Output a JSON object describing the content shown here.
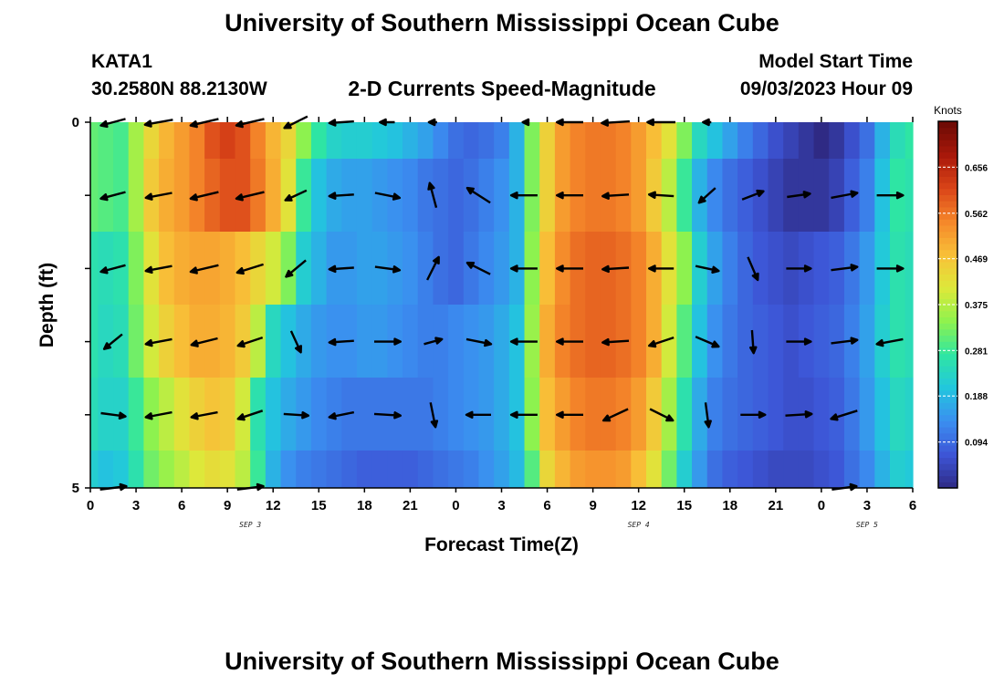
{
  "header": {
    "title": "University of Southern Mississippi Ocean Cube",
    "station": "KATA1",
    "coords": "30.2580N  88.2130W",
    "chart_name": "2-D Currents Speed-Magnitude",
    "model_label": "Model Start Time",
    "model_time": "09/03/2023 Hour 09"
  },
  "footer": {
    "title": "University of Southern Mississippi Ocean Cube"
  },
  "colors": {
    "colormap": [
      "#2f2a84",
      "#3d55d6",
      "#3b8ef0",
      "#22c6de",
      "#2fe6a2",
      "#8ef24e",
      "#dde93a",
      "#f8c038",
      "#f5872a",
      "#da4418",
      "#a8180a",
      "#6a0a05"
    ]
  },
  "chart_data": {
    "type": "heatmap",
    "xlabel": "Forecast Time(Z)",
    "ylabel": "Depth (ft)",
    "x_tick_labels": [
      "0",
      "3",
      "6",
      "9",
      "12",
      "15",
      "18",
      "21",
      "0",
      "3",
      "6",
      "9",
      "12",
      "15",
      "18",
      "21",
      "0",
      "3",
      "6"
    ],
    "y_tick_labels": [
      "0",
      "5"
    ],
    "y_range": [
      0,
      5
    ],
    "date_labels": [
      {
        "text": "SEP 3",
        "hour": 10.5
      },
      {
        "text": "SEP 4",
        "hour": 36
      },
      {
        "text": "SEP 5",
        "hour": 51
      }
    ],
    "hours": [
      0,
      1,
      2,
      3,
      4,
      5,
      6,
      7,
      8,
      9,
      10,
      11,
      12,
      13,
      14,
      15,
      16,
      17,
      18,
      19,
      20,
      21,
      22,
      23,
      24,
      25,
      26,
      27,
      28,
      29,
      30,
      31,
      32,
      33,
      34,
      35,
      36,
      37,
      38,
      39,
      40,
      41,
      42,
      43,
      44,
      45,
      46,
      47,
      48,
      49,
      50,
      51,
      52,
      53,
      54
    ],
    "depth_bands": [
      "0-0.5",
      "0.5-1.5",
      "1.5-2.5",
      "2.5-3.5",
      "3.5-4.5",
      "4.5-5"
    ],
    "speed_rows": [
      [
        0.31,
        0.3,
        0.29,
        0.36,
        0.44,
        0.49,
        0.52,
        0.55,
        0.6,
        0.62,
        0.6,
        0.55,
        0.49,
        0.44,
        0.34,
        0.27,
        0.23,
        0.22,
        0.22,
        0.21,
        0.2,
        0.18,
        0.16,
        0.13,
        0.1,
        0.09,
        0.1,
        0.12,
        0.18,
        0.33,
        0.45,
        0.52,
        0.55,
        0.56,
        0.56,
        0.55,
        0.52,
        0.48,
        0.42,
        0.33,
        0.24,
        0.2,
        0.16,
        0.12,
        0.09,
        0.06,
        0.04,
        0.02,
        0.0,
        0.02,
        0.06,
        0.1,
        0.18,
        0.25,
        0.27
      ],
      [
        0.31,
        0.3,
        0.29,
        0.36,
        0.46,
        0.5,
        0.52,
        0.55,
        0.58,
        0.6,
        0.6,
        0.56,
        0.5,
        0.42,
        0.28,
        0.2,
        0.17,
        0.16,
        0.16,
        0.15,
        0.14,
        0.13,
        0.11,
        0.1,
        0.09,
        0.1,
        0.12,
        0.14,
        0.18,
        0.33,
        0.45,
        0.52,
        0.55,
        0.56,
        0.56,
        0.55,
        0.52,
        0.46,
        0.38,
        0.28,
        0.18,
        0.13,
        0.1,
        0.08,
        0.06,
        0.04,
        0.02,
        0.02,
        0.02,
        0.04,
        0.08,
        0.12,
        0.2,
        0.27,
        0.26
      ],
      [
        0.26,
        0.25,
        0.26,
        0.33,
        0.42,
        0.48,
        0.5,
        0.51,
        0.51,
        0.5,
        0.48,
        0.44,
        0.4,
        0.33,
        0.22,
        0.18,
        0.15,
        0.15,
        0.16,
        0.16,
        0.15,
        0.14,
        0.12,
        0.1,
        0.09,
        0.11,
        0.13,
        0.15,
        0.18,
        0.34,
        0.48,
        0.54,
        0.57,
        0.58,
        0.58,
        0.57,
        0.55,
        0.5,
        0.42,
        0.34,
        0.22,
        0.16,
        0.12,
        0.09,
        0.07,
        0.06,
        0.05,
        0.06,
        0.07,
        0.08,
        0.11,
        0.15,
        0.21,
        0.26,
        0.25
      ],
      [
        0.26,
        0.24,
        0.25,
        0.32,
        0.4,
        0.45,
        0.48,
        0.5,
        0.5,
        0.49,
        0.46,
        0.38,
        0.24,
        0.2,
        0.17,
        0.15,
        0.14,
        0.14,
        0.15,
        0.15,
        0.14,
        0.13,
        0.12,
        0.12,
        0.13,
        0.14,
        0.15,
        0.17,
        0.2,
        0.35,
        0.5,
        0.55,
        0.57,
        0.58,
        0.58,
        0.57,
        0.55,
        0.5,
        0.4,
        0.3,
        0.2,
        0.14,
        0.11,
        0.09,
        0.08,
        0.07,
        0.06,
        0.07,
        0.08,
        0.09,
        0.12,
        0.16,
        0.22,
        0.26,
        0.25
      ],
      [
        0.25,
        0.23,
        0.23,
        0.28,
        0.34,
        0.38,
        0.42,
        0.45,
        0.47,
        0.46,
        0.4,
        0.26,
        0.2,
        0.17,
        0.15,
        0.13,
        0.12,
        0.11,
        0.11,
        0.11,
        0.11,
        0.11,
        0.11,
        0.12,
        0.13,
        0.14,
        0.15,
        0.17,
        0.2,
        0.34,
        0.48,
        0.52,
        0.55,
        0.56,
        0.56,
        0.55,
        0.52,
        0.46,
        0.36,
        0.26,
        0.17,
        0.12,
        0.1,
        0.09,
        0.08,
        0.07,
        0.06,
        0.06,
        0.07,
        0.08,
        0.11,
        0.15,
        0.2,
        0.24,
        0.23
      ],
      [
        0.22,
        0.2,
        0.21,
        0.26,
        0.32,
        0.35,
        0.38,
        0.41,
        0.43,
        0.42,
        0.38,
        0.28,
        0.18,
        0.14,
        0.12,
        0.11,
        0.1,
        0.09,
        0.08,
        0.08,
        0.08,
        0.08,
        0.09,
        0.1,
        0.11,
        0.12,
        0.14,
        0.16,
        0.19,
        0.3,
        0.44,
        0.49,
        0.52,
        0.53,
        0.53,
        0.52,
        0.48,
        0.42,
        0.32,
        0.22,
        0.15,
        0.1,
        0.08,
        0.07,
        0.06,
        0.05,
        0.05,
        0.05,
        0.06,
        0.07,
        0.1,
        0.13,
        0.18,
        0.22,
        0.21
      ]
    ],
    "vector_hours": [
      1.5,
      4.5,
      7.5,
      10.5,
      13.5,
      16.5,
      19.5,
      22.5,
      25.5,
      28.5,
      31.5,
      34.5,
      37.5,
      40.5,
      43.5,
      46.5,
      49.5,
      52.5
    ],
    "vector_depths": [
      0,
      1,
      2,
      3,
      4,
      5
    ],
    "vectors": [
      [
        {
          "u": -0.3,
          "v": -0.08,
          "s": 0.3
        },
        {
          "u": -0.34,
          "v": -0.06,
          "s": 0.34
        },
        {
          "u": -0.34,
          "v": -0.08,
          "s": 0.34
        },
        {
          "u": -0.34,
          "v": -0.08,
          "s": 0.34
        },
        {
          "u": -0.28,
          "v": -0.14,
          "s": 0.3
        },
        {
          "u": -0.3,
          "v": -0.02,
          "s": 0.3
        },
        {
          "u": -0.18,
          "v": 0.0,
          "s": 0.18
        },
        {
          "u": -0.1,
          "v": 0.0,
          "s": 0.1
        },
        {
          "u": 0.0,
          "v": 0.0,
          "s": 0.0
        },
        {
          "u": -0.04,
          "v": 0.0,
          "s": 0.04
        },
        {
          "u": -0.32,
          "v": 0.0,
          "s": 0.32
        },
        {
          "u": -0.34,
          "v": -0.02,
          "s": 0.34
        },
        {
          "u": -0.34,
          "v": 0.0,
          "s": 0.34
        },
        {
          "u": -0.1,
          "v": 0.0,
          "s": 0.1
        },
        {
          "u": 0.0,
          "v": 0.0,
          "s": 0.0
        },
        {
          "u": 0.0,
          "v": 0.0,
          "s": 0.0
        },
        {
          "u": 0.0,
          "v": 0.0,
          "s": 0.0
        },
        {
          "u": 0.0,
          "v": 0.0,
          "s": 0.0
        }
      ],
      [
        {
          "u": -0.3,
          "v": -0.08,
          "s": 0.3
        },
        {
          "u": -0.32,
          "v": -0.06,
          "s": 0.32
        },
        {
          "u": -0.34,
          "v": -0.08,
          "s": 0.34
        },
        {
          "u": -0.34,
          "v": -0.08,
          "s": 0.34
        },
        {
          "u": -0.26,
          "v": -0.12,
          "s": 0.28
        },
        {
          "u": -0.3,
          "v": -0.02,
          "s": 0.3
        },
        {
          "u": 0.3,
          "v": -0.06,
          "s": 0.3
        },
        {
          "u": -0.08,
          "v": 0.3,
          "s": 0.31
        },
        {
          "u": -0.28,
          "v": 0.18,
          "s": 0.32
        },
        {
          "u": -0.32,
          "v": 0.0,
          "s": 0.32
        },
        {
          "u": -0.32,
          "v": 0.0,
          "s": 0.32
        },
        {
          "u": -0.32,
          "v": -0.02,
          "s": 0.32
        },
        {
          "u": -0.3,
          "v": 0.02,
          "s": 0.3
        },
        {
          "u": -0.2,
          "v": -0.18,
          "s": 0.26
        },
        {
          "u": 0.26,
          "v": 0.1,
          "s": 0.28
        },
        {
          "u": 0.28,
          "v": 0.04,
          "s": 0.28
        },
        {
          "u": 0.32,
          "v": 0.06,
          "s": 0.32
        },
        {
          "u": 0.32,
          "v": 0.0,
          "s": 0.32
        }
      ],
      [
        {
          "u": -0.3,
          "v": -0.08,
          "s": 0.3
        },
        {
          "u": -0.32,
          "v": -0.06,
          "s": 0.32
        },
        {
          "u": -0.34,
          "v": -0.08,
          "s": 0.34
        },
        {
          "u": -0.32,
          "v": -0.1,
          "s": 0.33
        },
        {
          "u": -0.24,
          "v": -0.2,
          "s": 0.3
        },
        {
          "u": -0.3,
          "v": -0.02,
          "s": 0.3
        },
        {
          "u": 0.3,
          "v": -0.04,
          "s": 0.3
        },
        {
          "u": 0.14,
          "v": 0.28,
          "s": 0.31
        },
        {
          "u": -0.28,
          "v": 0.14,
          "s": 0.31
        },
        {
          "u": -0.32,
          "v": 0.0,
          "s": 0.32
        },
        {
          "u": -0.32,
          "v": 0.0,
          "s": 0.32
        },
        {
          "u": -0.32,
          "v": -0.02,
          "s": 0.32
        },
        {
          "u": -0.3,
          "v": 0.0,
          "s": 0.3
        },
        {
          "u": 0.28,
          "v": -0.06,
          "s": 0.28
        },
        {
          "u": 0.12,
          "v": -0.28,
          "s": 0.3
        },
        {
          "u": 0.3,
          "v": 0.0,
          "s": 0.3
        },
        {
          "u": 0.32,
          "v": 0.04,
          "s": 0.32
        },
        {
          "u": 0.32,
          "v": 0.0,
          "s": 0.32
        }
      ],
      [
        {
          "u": -0.22,
          "v": -0.18,
          "s": 0.28
        },
        {
          "u": -0.32,
          "v": -0.06,
          "s": 0.32
        },
        {
          "u": -0.32,
          "v": -0.08,
          "s": 0.33
        },
        {
          "u": -0.3,
          "v": -0.1,
          "s": 0.31
        },
        {
          "u": 0.12,
          "v": -0.26,
          "s": 0.29
        },
        {
          "u": -0.3,
          "v": -0.02,
          "s": 0.3
        },
        {
          "u": 0.32,
          "v": 0.0,
          "s": 0.32
        },
        {
          "u": 0.22,
          "v": 0.06,
          "s": 0.23
        },
        {
          "u": 0.3,
          "v": -0.06,
          "s": 0.31
        },
        {
          "u": -0.32,
          "v": 0.0,
          "s": 0.32
        },
        {
          "u": -0.32,
          "v": 0.0,
          "s": 0.32
        },
        {
          "u": -0.32,
          "v": -0.02,
          "s": 0.32
        },
        {
          "u": -0.3,
          "v": -0.1,
          "s": 0.31
        },
        {
          "u": 0.28,
          "v": -0.12,
          "s": 0.3
        },
        {
          "u": 0.02,
          "v": -0.28,
          "s": 0.28
        },
        {
          "u": 0.3,
          "v": 0.0,
          "s": 0.3
        },
        {
          "u": 0.32,
          "v": 0.04,
          "s": 0.32
        },
        {
          "u": -0.32,
          "v": -0.06,
          "s": 0.32
        }
      ],
      [
        {
          "u": 0.3,
          "v": -0.04,
          "s": 0.3
        },
        {
          "u": -0.32,
          "v": -0.06,
          "s": 0.32
        },
        {
          "u": -0.32,
          "v": -0.06,
          "s": 0.32
        },
        {
          "u": -0.3,
          "v": -0.1,
          "s": 0.31
        },
        {
          "u": 0.3,
          "v": -0.02,
          "s": 0.3
        },
        {
          "u": -0.3,
          "v": -0.06,
          "s": 0.3
        },
        {
          "u": 0.32,
          "v": -0.02,
          "s": 0.32
        },
        {
          "u": 0.06,
          "v": -0.3,
          "s": 0.31
        },
        {
          "u": -0.3,
          "v": 0.0,
          "s": 0.3
        },
        {
          "u": -0.32,
          "v": 0.0,
          "s": 0.32
        },
        {
          "u": -0.32,
          "v": 0.0,
          "s": 0.32
        },
        {
          "u": -0.3,
          "v": -0.14,
          "s": 0.33
        },
        {
          "u": 0.28,
          "v": -0.14,
          "s": 0.31
        },
        {
          "u": 0.04,
          "v": -0.3,
          "s": 0.3
        },
        {
          "u": 0.3,
          "v": 0.0,
          "s": 0.3
        },
        {
          "u": 0.32,
          "v": 0.02,
          "s": 0.32
        },
        {
          "u": -0.32,
          "v": -0.1,
          "s": 0.33
        },
        {
          "u": 0.0,
          "v": 0.0,
          "s": 0.0
        }
      ],
      [
        {
          "u": 0.32,
          "v": 0.04,
          "s": 0.32
        },
        {
          "u": 0.0,
          "v": 0.0,
          "s": 0.0
        },
        {
          "u": 0.0,
          "v": 0.0,
          "s": 0.0
        },
        {
          "u": 0.32,
          "v": 0.04,
          "s": 0.32
        },
        {
          "u": 0.0,
          "v": 0.0,
          "s": 0.0
        },
        {
          "u": 0.0,
          "v": 0.0,
          "s": 0.0
        },
        {
          "u": 0.0,
          "v": 0.0,
          "s": 0.0
        },
        {
          "u": 0.0,
          "v": 0.0,
          "s": 0.0
        },
        {
          "u": 0.0,
          "v": 0.0,
          "s": 0.0
        },
        {
          "u": 0.0,
          "v": 0.0,
          "s": 0.0
        },
        {
          "u": 0.0,
          "v": 0.0,
          "s": 0.0
        },
        {
          "u": 0.0,
          "v": 0.0,
          "s": 0.0
        },
        {
          "u": 0.0,
          "v": 0.0,
          "s": 0.0
        },
        {
          "u": 0.0,
          "v": 0.0,
          "s": 0.0
        },
        {
          "u": 0.0,
          "v": 0.0,
          "s": 0.0
        },
        {
          "u": 0.0,
          "v": 0.0,
          "s": 0.0
        },
        {
          "u": 0.3,
          "v": 0.04,
          "s": 0.3
        },
        {
          "u": 0.0,
          "v": 0.0,
          "s": 0.0
        }
      ]
    ],
    "colorbar": {
      "label": "Knots",
      "min": 0,
      "max": 0.75,
      "tick_values": [
        0.094,
        0.188,
        0.281,
        0.375,
        0.469,
        0.562,
        0.656
      ],
      "tick_labels": [
        "0.094",
        "0.188",
        "0.281",
        "0.375",
        "0.469",
        "0.562",
        "0.656"
      ]
    }
  }
}
